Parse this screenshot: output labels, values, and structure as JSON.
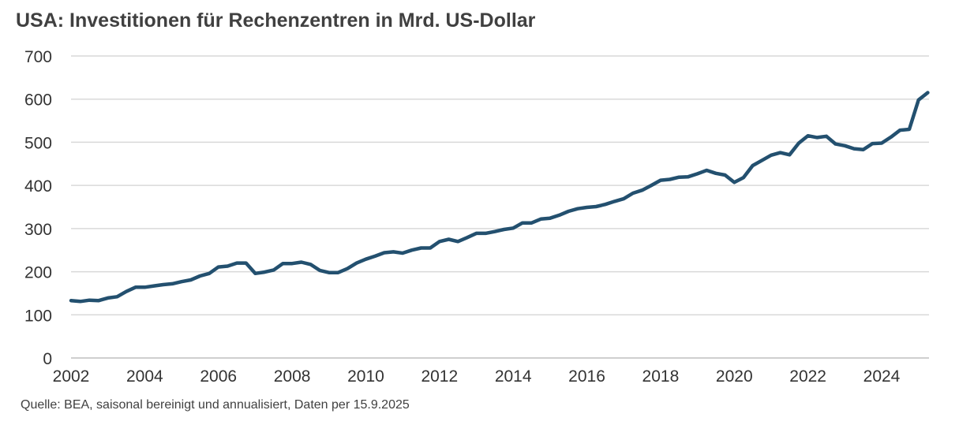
{
  "chart_data": {
    "type": "line",
    "title": "USA: Investitionen für Rechenzentren in Mrd. US-Dollar",
    "source": "Quelle: BEA, saisonal bereinigt und annualisiert, Daten per 15.9.2025",
    "xlabel": "",
    "ylabel": "",
    "ylim": [
      0,
      700
    ],
    "yticks": [
      0,
      100,
      200,
      300,
      400,
      500,
      600,
      700
    ],
    "xlim": [
      2002,
      2025.25
    ],
    "xticks": [
      2002,
      2004,
      2006,
      2008,
      2010,
      2012,
      2014,
      2016,
      2018,
      2020,
      2022,
      2024
    ],
    "grid": true,
    "x_start": 2002,
    "x_step": 0.25,
    "series": [
      {
        "name": "Investitionen für Rechenzentren",
        "color": "#23506f",
        "values": [
          133,
          131,
          134,
          133,
          139,
          142,
          154,
          164,
          164,
          167,
          170,
          172,
          177,
          181,
          190,
          196,
          211,
          213,
          220,
          220,
          196,
          199,
          204,
          219,
          219,
          222,
          217,
          203,
          198,
          198,
          207,
          220,
          229,
          236,
          244,
          246,
          243,
          250,
          255,
          255,
          270,
          275,
          270,
          279,
          289,
          289,
          293,
          298,
          301,
          313,
          313,
          322,
          324,
          331,
          340,
          346,
          349,
          351,
          356,
          363,
          369,
          382,
          389,
          400,
          412,
          414,
          419,
          420,
          427,
          435,
          428,
          424,
          407,
          418,
          446,
          458,
          470,
          476,
          471,
          498,
          515,
          511,
          514,
          496,
          492,
          485,
          483,
          497,
          498,
          512,
          528,
          530,
          598,
          615
        ]
      }
    ]
  }
}
